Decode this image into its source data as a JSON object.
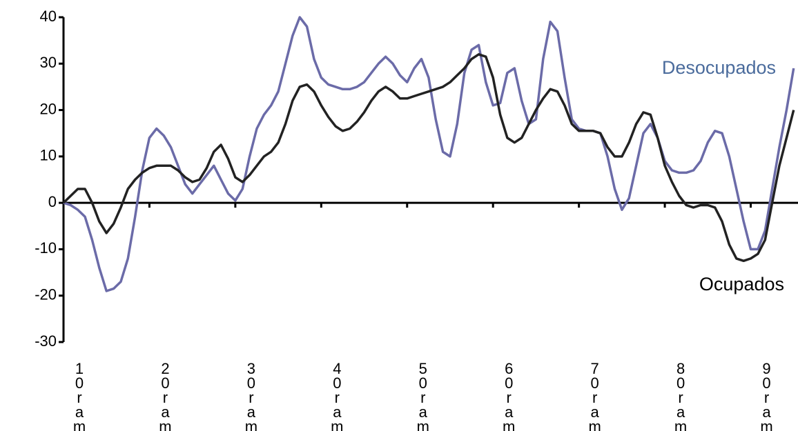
{
  "chart_data": {
    "type": "line",
    "categories": [
      "10ram",
      null,
      null,
      null,
      null,
      null,
      null,
      null,
      null,
      null,
      null,
      null,
      "20ram",
      null,
      null,
      null,
      null,
      null,
      null,
      null,
      null,
      null,
      null,
      null,
      "30ram",
      null,
      null,
      null,
      null,
      null,
      null,
      null,
      null,
      null,
      null,
      null,
      "40ram",
      null,
      null,
      null,
      null,
      null,
      null,
      null,
      null,
      null,
      null,
      null,
      "50ram",
      null,
      null,
      null,
      null,
      null,
      null,
      null,
      null,
      null,
      null,
      null,
      "60ram",
      null,
      null,
      null,
      null,
      null,
      null,
      null,
      null,
      null,
      null,
      null,
      "70ram",
      null,
      null,
      null,
      null,
      null,
      null,
      null,
      null,
      null,
      null,
      null,
      "80ram",
      null,
      null,
      null,
      null,
      null,
      null,
      null,
      null,
      null,
      null,
      null,
      "90ram",
      null,
      null,
      null,
      null,
      null,
      null
    ],
    "series": [
      {
        "name": "Desocupados",
        "color": "#6b6ba8",
        "label_color": "#4a6b9c",
        "values": [
          0,
          -0.5,
          -1.5,
          -3,
          -8,
          -14,
          -19,
          -18.5,
          -17,
          -12,
          -3,
          7,
          14,
          16,
          14.5,
          12,
          8,
          4,
          2,
          4,
          6,
          8,
          5,
          2,
          0.5,
          3,
          10,
          16,
          19,
          21,
          24,
          30,
          36,
          40,
          38,
          31,
          27,
          25.5,
          25,
          24.5,
          24.5,
          25,
          26,
          28,
          30,
          31.5,
          30,
          27.5,
          26,
          29,
          31,
          27,
          18,
          11,
          10,
          17,
          28,
          33,
          34,
          26,
          21,
          21.5,
          28,
          29,
          22,
          17,
          18,
          31,
          39,
          37,
          27,
          18,
          16,
          15.5,
          15.5,
          15,
          10,
          3,
          -1.5,
          1,
          8,
          15,
          17,
          14,
          9,
          7,
          6.5,
          6.5,
          7,
          9,
          13,
          15.5,
          15,
          10,
          3,
          -4,
          -10,
          -10,
          -6,
          3,
          12,
          20,
          29
        ]
      },
      {
        "name": "Ocupados",
        "color": "#222222",
        "label_color": "#000000",
        "values": [
          0,
          1.5,
          3,
          3,
          0,
          -4,
          -6.5,
          -4.5,
          -1,
          3,
          5,
          6.5,
          7.5,
          8,
          8,
          8,
          7,
          5.5,
          4.5,
          5,
          7.5,
          11,
          12.5,
          9.5,
          5.5,
          4.5,
          6,
          8,
          10,
          11,
          13,
          17,
          22,
          25,
          25.5,
          24,
          21,
          18.5,
          16.5,
          15.5,
          16,
          17.5,
          19.5,
          22,
          24,
          25,
          24,
          22.5,
          22.5,
          23,
          23.5,
          24,
          24.5,
          25,
          26,
          27.5,
          29,
          31,
          32,
          31.5,
          27,
          19,
          14,
          13,
          14,
          17,
          20,
          22.5,
          24.5,
          24,
          21,
          17,
          15.5,
          15.5,
          15.5,
          15,
          12,
          10,
          10,
          13,
          17,
          19.5,
          19,
          14,
          8,
          4.5,
          1.5,
          -0.5,
          -1,
          -0.5,
          -0.5,
          -1,
          -4,
          -9,
          -12,
          -12.5,
          -12,
          -11,
          -8,
          0,
          8,
          14,
          20
        ]
      }
    ],
    "ylim": [
      -30,
      40
    ],
    "yticks": [
      -30,
      -20,
      -10,
      0,
      10,
      20,
      30,
      40
    ],
    "grid": false
  }
}
